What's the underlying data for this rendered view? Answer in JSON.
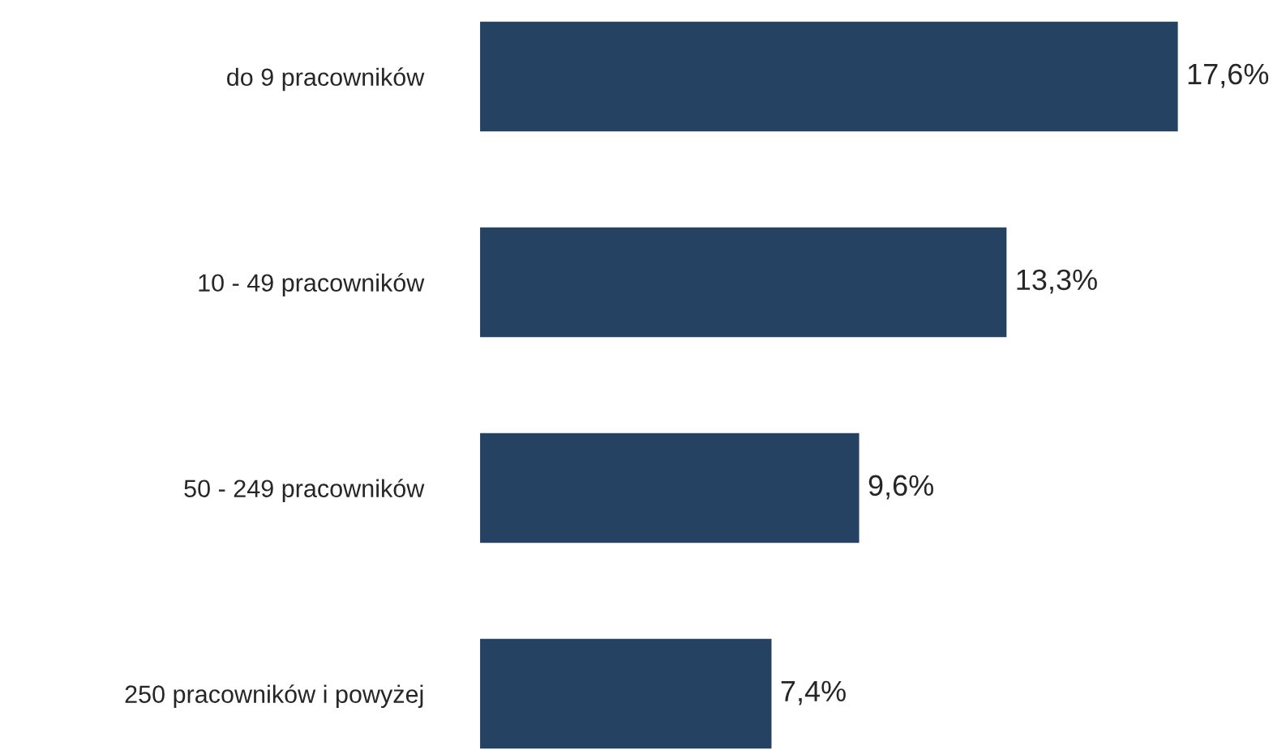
{
  "chart_data": {
    "type": "bar",
    "orientation": "horizontal",
    "categories": [
      "do 9 pracowników",
      "10 - 49 pracowników",
      "50 - 249 pracowników",
      "250 pracowników i powyżej"
    ],
    "values": [
      17.6,
      13.3,
      9.6,
      7.4
    ],
    "value_labels": [
      "17,6%",
      "13,3%",
      "9,6%",
      "7,4%"
    ],
    "color": "#264263",
    "grid": false,
    "legend": false
  }
}
